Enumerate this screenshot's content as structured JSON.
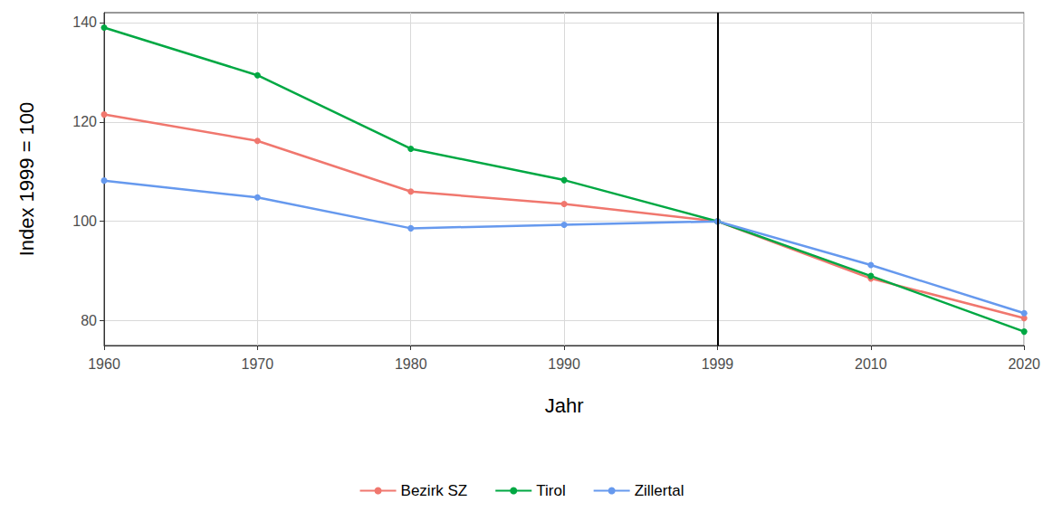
{
  "chart_data": {
    "type": "line",
    "x_label": "Jahr",
    "y_label": "Index 1999 = 100",
    "categories": [
      "1960",
      "1970",
      "1980",
      "1990",
      "1999",
      "2010",
      "2020"
    ],
    "series": [
      {
        "name": "Bezirk SZ",
        "color": "#F0776E",
        "values": [
          121.5,
          116.2,
          106.0,
          103.5,
          100,
          88.5,
          80.5
        ]
      },
      {
        "name": "Tirol",
        "color": "#00A843",
        "values": [
          139.0,
          129.4,
          114.6,
          108.3,
          100,
          89.0,
          77.8
        ]
      },
      {
        "name": "Zillertal",
        "color": "#6699EE",
        "values": [
          108.2,
          104.8,
          98.6,
          99.3,
          100,
          91.2,
          81.5
        ]
      }
    ],
    "reference_x": "1999",
    "ylim": [
      75,
      142
    ],
    "yticks": [
      80,
      100,
      120,
      140
    ],
    "grid": true,
    "legend": "bottom",
    "marker": "circle"
  }
}
